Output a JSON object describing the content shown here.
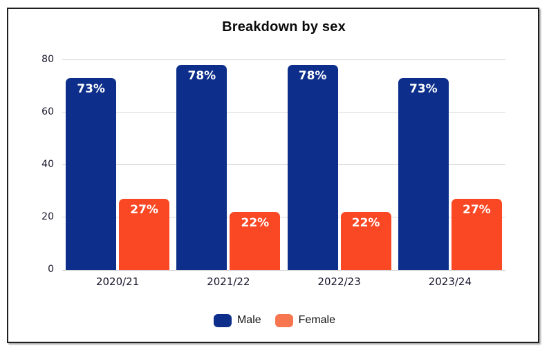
{
  "title": "Breakdown by sex",
  "chart_data": {
    "type": "bar",
    "title": "Breakdown by sex",
    "categories": [
      "2020/21",
      "2021/22",
      "2022/23",
      "2023/24"
    ],
    "series": [
      {
        "name": "Male",
        "color": "#0d2f8b",
        "legend_color": "#0d2f8b",
        "values": [
          73,
          78,
          78,
          73
        ],
        "data_labels": [
          "73%",
          "78%",
          "78%",
          "73%"
        ]
      },
      {
        "name": "Female",
        "color": "#fa4724",
        "legend_color": "#f8764f",
        "values": [
          27,
          22,
          22,
          27
        ],
        "data_labels": [
          "27%",
          "22%",
          "22%",
          "27%"
        ]
      }
    ],
    "ylim": [
      0,
      80
    ],
    "yticks": [
      0,
      20,
      40,
      60,
      80
    ],
    "grid": true,
    "legend_position": "bottom",
    "value_labels_inside_bars": true,
    "xlabel": "",
    "ylabel": ""
  },
  "colors": {
    "background": "#ffffff",
    "frame_border": "#1e1e1e",
    "grid": "#d9d9d9",
    "baseline": "#c9c9c9",
    "tick_text": "#16162c",
    "title_text": "#0a0a0a",
    "value_label_text": "#ffffff"
  }
}
